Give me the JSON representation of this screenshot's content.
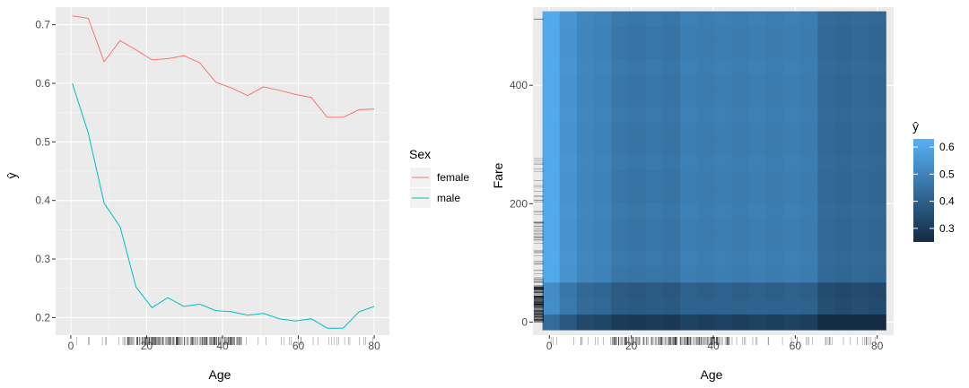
{
  "chart_data": [
    {
      "type": "line",
      "xlabel": "Age",
      "ylabel": "ŷ",
      "xlim": [
        -4,
        84
      ],
      "ylim": [
        0.17,
        0.73
      ],
      "xticks": [
        0,
        20,
        40,
        60,
        80
      ],
      "yticks": [
        0.2,
        0.3,
        0.4,
        0.5,
        0.6,
        0.7
      ],
      "grid": true,
      "legend": {
        "title": "Sex",
        "placement": "right"
      },
      "series": [
        {
          "name": "female",
          "color": "#F8766D",
          "x": [
            0.4,
            4.6,
            8.8,
            13.0,
            17.2,
            21.4,
            25.6,
            29.8,
            34.0,
            38.2,
            42.4,
            46.6,
            50.8,
            55.0,
            59.2,
            63.4,
            67.6,
            71.8,
            76.0,
            80.0
          ],
          "y": [
            0.715,
            0.711,
            0.637,
            0.673,
            0.657,
            0.64,
            0.642,
            0.647,
            0.635,
            0.602,
            0.592,
            0.579,
            0.594,
            0.588,
            0.581,
            0.576,
            0.542,
            0.542,
            0.555,
            0.556
          ]
        },
        {
          "name": "male",
          "color": "#00BFC4",
          "x": [
            0.4,
            4.6,
            8.8,
            13.0,
            17.2,
            21.4,
            25.6,
            29.8,
            34.0,
            38.2,
            42.4,
            46.6,
            50.8,
            55.0,
            59.2,
            63.4,
            67.6,
            71.8,
            76.0,
            80.0
          ],
          "y": [
            0.6,
            0.515,
            0.395,
            0.355,
            0.252,
            0.217,
            0.234,
            0.219,
            0.223,
            0.212,
            0.21,
            0.204,
            0.207,
            0.198,
            0.194,
            0.198,
            0.182,
            0.182,
            0.21,
            0.219
          ]
        }
      ],
      "rug_color": "#000000"
    },
    {
      "type": "heatmap",
      "xlabel": "Age",
      "ylabel": "Fare",
      "xlim": [
        -4,
        84
      ],
      "ylim": [
        -22,
        532
      ],
      "xticks": [
        0,
        20,
        40,
        60,
        80
      ],
      "yticks": [
        0,
        200,
        400
      ],
      "grid": true,
      "x_bins": [
        0.42,
        4.6,
        8.8,
        13.0,
        17.2,
        21.4,
        25.6,
        29.8,
        34.0,
        38.2,
        42.4,
        46.6,
        50.8,
        55.0,
        59.2,
        63.4,
        67.6,
        71.8,
        76.0,
        80.0
      ],
      "y_bins": [
        0,
        27,
        54,
        81,
        108,
        135,
        162,
        189,
        216,
        243,
        270,
        297,
        324,
        351,
        378,
        405,
        432,
        459,
        486,
        512
      ],
      "legend": {
        "title": "ŷ",
        "placement": "right",
        "range": [
          0.25,
          0.63
        ],
        "ticks": [
          0.3,
          0.4,
          0.5,
          0.6
        ],
        "low_color": "#132B43",
        "high_color": "#56B1F7"
      },
      "rug_color": "#000000"
    }
  ]
}
